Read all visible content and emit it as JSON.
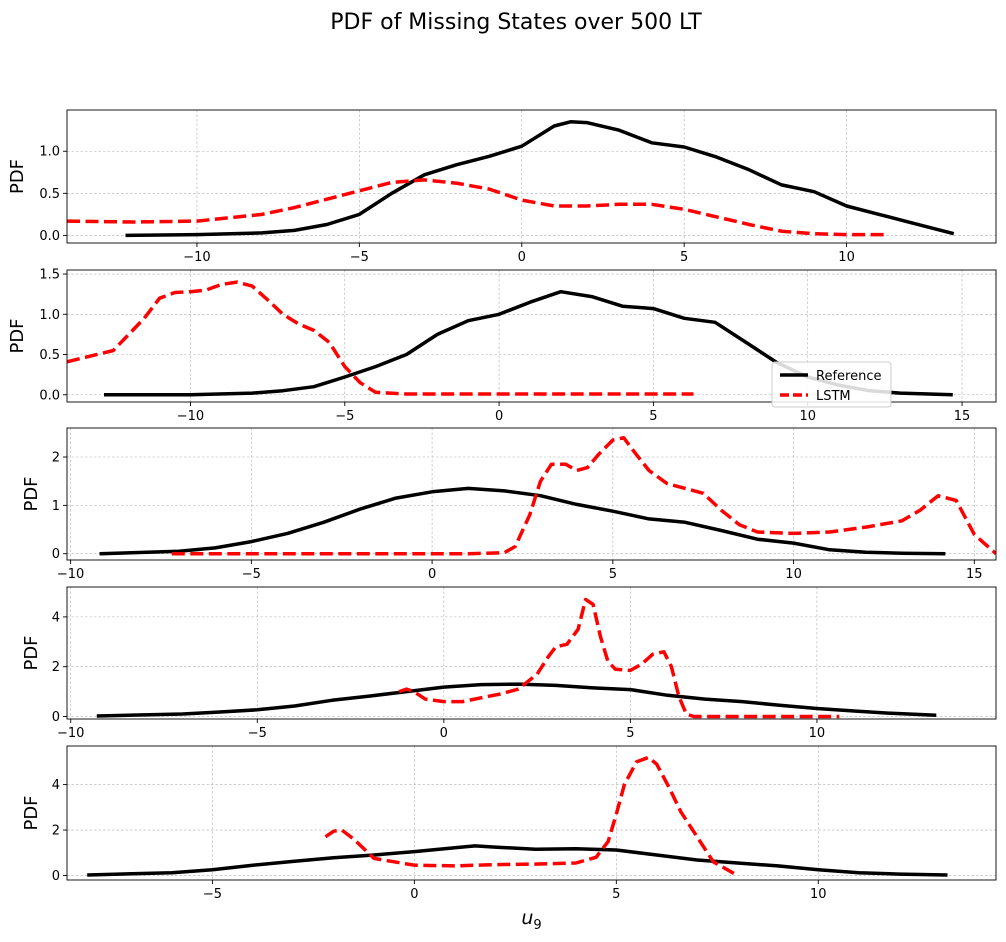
{
  "title": "PDF of Missing States over 500 LT",
  "colors": {
    "reference": "#000000",
    "lstm": "#ff0000",
    "grid": "#b0b0b0"
  },
  "legend": {
    "entries": [
      "Reference",
      "LSTM"
    ],
    "placement": "lower-right of panel 2"
  },
  "chart_data": [
    {
      "type": "line",
      "ylabel": "PDF",
      "xlabel": "",
      "xlim": [
        -14,
        14.6
      ],
      "ylim": [
        -0.09,
        1.49
      ],
      "xticks": [
        "−10",
        "−5",
        "0",
        "5",
        "10"
      ],
      "xtick_values": [
        -10,
        -5,
        0,
        5,
        10
      ],
      "yticks": [
        "0.0",
        "0.5",
        "1.0"
      ],
      "ytick_values": [
        0,
        0.5,
        1.0
      ],
      "grid": true,
      "series": [
        {
          "name": "Reference",
          "style": "solid",
          "x": [
            -12.2,
            -10,
            -8,
            -7,
            -6,
            -5,
            -4,
            -3,
            -2,
            -1,
            0,
            1,
            1.5,
            2,
            3,
            4,
            5,
            6,
            7,
            8,
            9,
            10,
            11,
            12,
            13.3
          ],
          "y": [
            0.0,
            0.01,
            0.03,
            0.06,
            0.13,
            0.25,
            0.5,
            0.72,
            0.84,
            0.94,
            1.06,
            1.3,
            1.35,
            1.34,
            1.25,
            1.1,
            1.05,
            0.93,
            0.78,
            0.6,
            0.52,
            0.35,
            0.25,
            0.15,
            0.02
          ]
        },
        {
          "name": "LSTM",
          "style": "dashed",
          "x": [
            -14,
            -12,
            -10,
            -8,
            -7,
            -6,
            -5,
            -4,
            -3,
            -2,
            -1,
            0,
            1,
            2,
            3,
            4,
            5,
            6,
            7,
            8,
            9,
            10,
            11.2
          ],
          "y": [
            0.17,
            0.16,
            0.17,
            0.25,
            0.33,
            0.43,
            0.53,
            0.63,
            0.66,
            0.62,
            0.55,
            0.42,
            0.35,
            0.35,
            0.37,
            0.37,
            0.31,
            0.22,
            0.13,
            0.05,
            0.02,
            0.01,
            0.01
          ]
        }
      ]
    },
    {
      "type": "line",
      "ylabel": "PDF",
      "xlabel": "",
      "xlim": [
        -14,
        16.1
      ],
      "ylim": [
        -0.09,
        1.55
      ],
      "xticks": [
        "−10",
        "−5",
        "0",
        "5",
        "10",
        "15"
      ],
      "xtick_values": [
        -10,
        -5,
        0,
        5,
        10,
        15
      ],
      "yticks": [
        "0.0",
        "0.5",
        "1.0",
        "1.5"
      ],
      "ytick_values": [
        0,
        0.5,
        1.0,
        1.5
      ],
      "grid": true,
      "series": [
        {
          "name": "Reference",
          "style": "solid",
          "x": [
            -12.8,
            -10,
            -8,
            -7,
            -6,
            -5,
            -4,
            -3,
            -2,
            -1,
            0,
            1,
            2,
            3,
            4,
            5,
            6,
            7,
            8,
            9,
            10,
            11,
            12,
            13,
            14.7
          ],
          "y": [
            0.0,
            0.0,
            0.02,
            0.05,
            0.1,
            0.22,
            0.35,
            0.5,
            0.75,
            0.92,
            1.0,
            1.15,
            1.28,
            1.22,
            1.1,
            1.07,
            0.95,
            0.9,
            0.65,
            0.4,
            0.22,
            0.12,
            0.05,
            0.02,
            0.0
          ]
        },
        {
          "name": "LSTM",
          "style": "dashed",
          "x": [
            -14,
            -12.5,
            -11.5,
            -11,
            -10.5,
            -10,
            -9.5,
            -9,
            -8.5,
            -8,
            -7.5,
            -7,
            -6.5,
            -6,
            -5.5,
            -5,
            -4.5,
            -4,
            -3,
            -2,
            0,
            2,
            4,
            6.3
          ],
          "y": [
            0.41,
            0.55,
            0.95,
            1.2,
            1.27,
            1.28,
            1.3,
            1.37,
            1.4,
            1.35,
            1.18,
            1.0,
            0.88,
            0.8,
            0.65,
            0.35,
            0.15,
            0.03,
            0.01,
            0.01,
            0.01,
            0.01,
            0.01,
            0.01
          ]
        }
      ]
    },
    {
      "type": "line",
      "ylabel": "PDF",
      "xlabel": "",
      "xlim": [
        -10.1,
        15.6
      ],
      "ylim": [
        -0.13,
        2.6
      ],
      "xticks": [
        "−10",
        "−5",
        "0",
        "5",
        "10",
        "15"
      ],
      "xtick_values": [
        -10,
        -5,
        0,
        5,
        10,
        15
      ],
      "yticks": [
        "0",
        "1",
        "2"
      ],
      "ytick_values": [
        0,
        1,
        2
      ],
      "grid": true,
      "series": [
        {
          "name": "Reference",
          "style": "solid",
          "x": [
            -9.2,
            -7,
            -6,
            -5,
            -4,
            -3,
            -2,
            -1,
            0,
            1,
            2,
            3,
            4,
            5,
            6,
            7,
            8,
            9,
            10,
            11,
            12,
            13,
            14.2
          ],
          "y": [
            0.0,
            0.05,
            0.12,
            0.25,
            0.42,
            0.65,
            0.92,
            1.15,
            1.28,
            1.35,
            1.3,
            1.2,
            1.02,
            0.88,
            0.72,
            0.65,
            0.48,
            0.3,
            0.22,
            0.08,
            0.03,
            0.01,
            0.0
          ]
        },
        {
          "name": "LSTM",
          "style": "dashed",
          "x": [
            -7.2,
            -5,
            -3,
            -1,
            1,
            2,
            2.3,
            2.7,
            3,
            3.3,
            3.7,
            4,
            4.3,
            4.6,
            5,
            5.3,
            5.6,
            6,
            6.5,
            7,
            7.5,
            8,
            8.5,
            9,
            10,
            11,
            12,
            13,
            13.5,
            14,
            14.5,
            15,
            15.6
          ],
          "y": [
            0.0,
            0.0,
            0.0,
            0.0,
            0.0,
            0.02,
            0.15,
            0.8,
            1.5,
            1.85,
            1.85,
            1.72,
            1.78,
            2.05,
            2.35,
            2.4,
            2.1,
            1.72,
            1.45,
            1.35,
            1.25,
            0.9,
            0.6,
            0.45,
            0.42,
            0.45,
            0.55,
            0.68,
            0.9,
            1.2,
            1.1,
            0.4,
            0.0
          ]
        }
      ]
    },
    {
      "type": "line",
      "ylabel": "PDF",
      "xlabel": "",
      "xlim": [
        -10.1,
        14.8
      ],
      "ylim": [
        -0.1,
        5.2
      ],
      "xticks": [
        "−10",
        "−5",
        "0",
        "5",
        "10"
      ],
      "xtick_values": [
        -10,
        -5,
        0,
        5,
        10
      ],
      "yticks": [
        "0",
        "2",
        "4"
      ],
      "ytick_values": [
        0,
        2,
        4
      ],
      "grid": true,
      "series": [
        {
          "name": "Reference",
          "style": "solid",
          "x": [
            -9.3,
            -7,
            -6,
            -5,
            -4,
            -3,
            -2,
            -1,
            0,
            1,
            2,
            3,
            4,
            5,
            6,
            7,
            8,
            9,
            10,
            11,
            12,
            13.2
          ],
          "y": [
            0.02,
            0.1,
            0.18,
            0.27,
            0.42,
            0.65,
            0.82,
            1.0,
            1.18,
            1.28,
            1.3,
            1.25,
            1.15,
            1.08,
            0.85,
            0.7,
            0.6,
            0.45,
            0.32,
            0.22,
            0.13,
            0.05
          ]
        },
        {
          "name": "LSTM",
          "style": "dashed",
          "x": [
            -1.2,
            -1,
            -0.8,
            -0.5,
            0,
            0.5,
            1,
            1.5,
            2,
            2.5,
            2.8,
            3,
            3.3,
            3.6,
            3.8,
            4,
            4.2,
            4.4,
            4.6,
            5,
            5.3,
            5.6,
            5.9,
            6.1,
            6.3,
            6.5,
            6.7,
            7,
            8,
            9,
            10.6
          ],
          "y": [
            1.0,
            1.1,
            1.0,
            0.7,
            0.6,
            0.6,
            0.75,
            0.9,
            1.1,
            1.7,
            2.4,
            2.8,
            2.9,
            3.5,
            4.7,
            4.5,
            3.2,
            2.2,
            1.9,
            1.85,
            2.1,
            2.5,
            2.6,
            2.0,
            0.8,
            0.1,
            0.0,
            0.0,
            0.0,
            0.0,
            0.0
          ]
        }
      ]
    },
    {
      "type": "line",
      "ylabel": "PDF",
      "xlabel": "u9",
      "xlim": [
        -8.6,
        14.4
      ],
      "ylim": [
        -0.2,
        5.7
      ],
      "xticks": [
        "−5",
        "0",
        "5",
        "10"
      ],
      "xtick_values": [
        -5,
        0,
        5,
        10
      ],
      "yticks": [
        "0",
        "2",
        "4"
      ],
      "ytick_values": [
        0,
        2,
        4
      ],
      "grid": true,
      "series": [
        {
          "name": "Reference",
          "style": "solid",
          "x": [
            -8.1,
            -6,
            -5,
            -4,
            -3,
            -2,
            -1,
            0,
            1,
            1.5,
            2,
            3,
            4,
            5,
            6,
            7,
            8,
            9,
            10,
            11,
            12,
            13.2
          ],
          "y": [
            0.02,
            0.12,
            0.25,
            0.45,
            0.62,
            0.78,
            0.9,
            1.05,
            1.22,
            1.3,
            1.25,
            1.15,
            1.18,
            1.12,
            0.9,
            0.68,
            0.55,
            0.42,
            0.25,
            0.12,
            0.06,
            0.02
          ]
        },
        {
          "name": "LSTM",
          "style": "dashed",
          "x": [
            -2.2,
            -2,
            -1.8,
            -1.5,
            -1,
            0,
            1,
            2,
            3,
            4,
            4.5,
            4.8,
            5,
            5.2,
            5.5,
            5.8,
            6,
            6.3,
            6.6,
            7,
            7.4,
            8
          ],
          "y": [
            1.7,
            1.95,
            2.0,
            1.6,
            0.75,
            0.45,
            0.42,
            0.48,
            0.5,
            0.55,
            0.8,
            1.5,
            2.7,
            4.0,
            5.0,
            5.2,
            4.9,
            3.9,
            2.8,
            1.7,
            0.6,
            0.0
          ]
        }
      ]
    }
  ]
}
